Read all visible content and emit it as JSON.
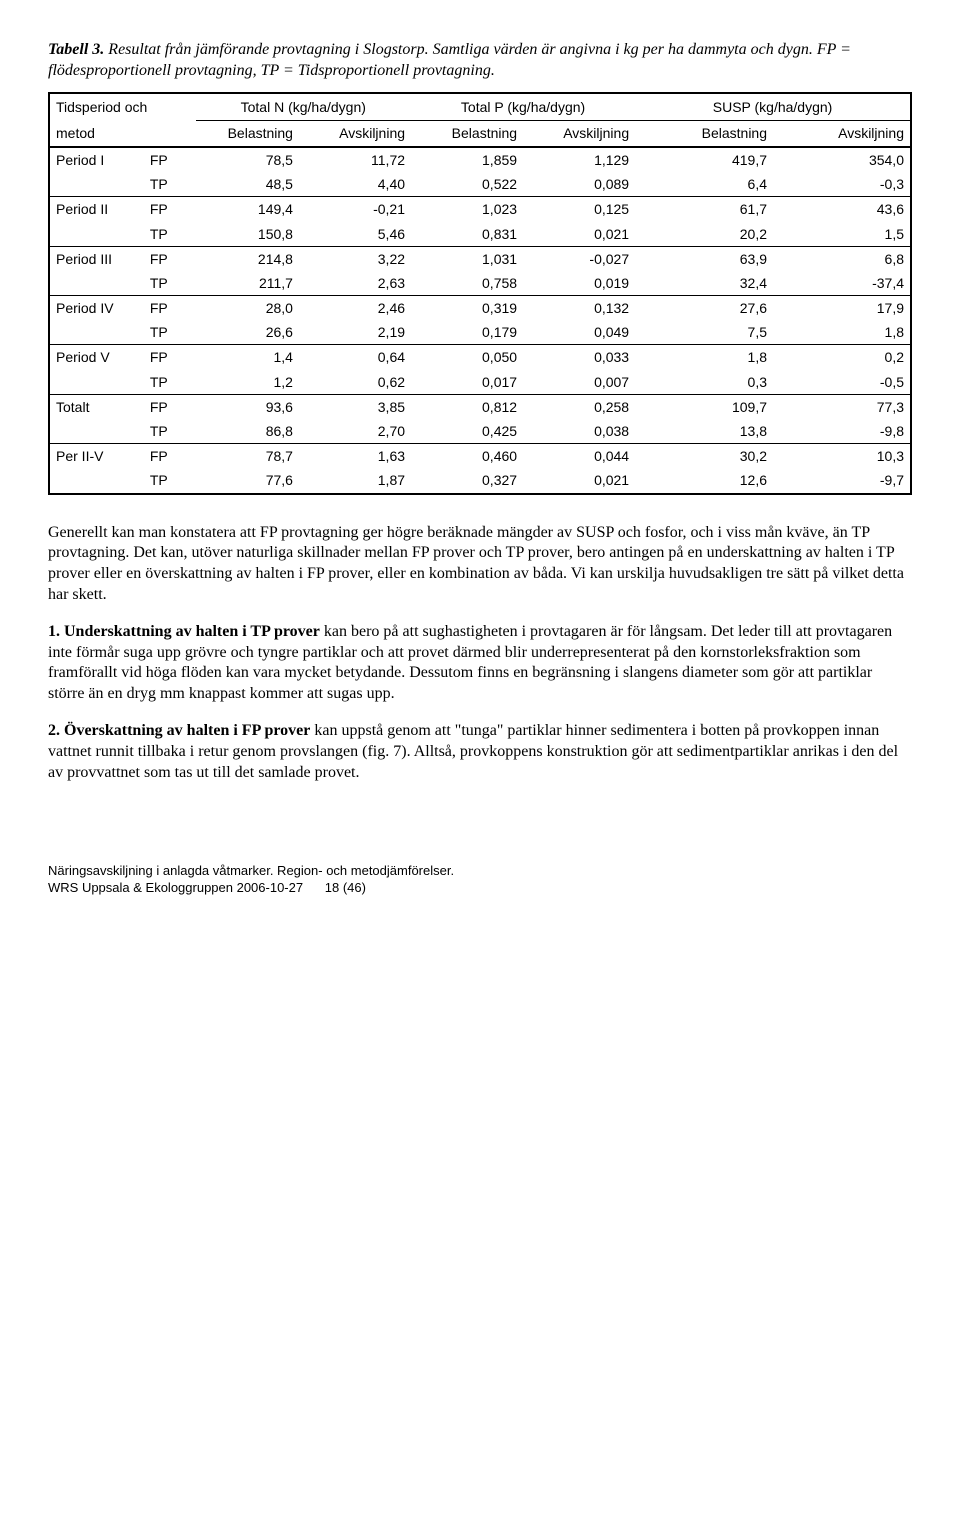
{
  "caption": {
    "label": "Tabell 3.",
    "text": " Resultat från jämförande provtagning i Slogstorp. Samtliga värden är angivna i kg per ha dammyta och dygn. FP = flödesproportionell provtagning, TP = Tidsproportionell provtagning."
  },
  "table": {
    "header1": {
      "c0": "Tidsperiod och",
      "c1": "Total N (kg/ha/dygn)",
      "c2": "Total P (kg/ha/dygn)",
      "c3": "SUSP (kg/ha/dygn)"
    },
    "header2": {
      "c0": "metod",
      "c1": "Belastning",
      "c2": "Avskiljning",
      "c3": "Belastning",
      "c4": "Avskiljning",
      "c5": "Belastning",
      "c6": "Avskiljning"
    },
    "rows": [
      {
        "period": "Period I",
        "method": "FP",
        "v": [
          "78,5",
          "11,72",
          "1,859",
          "1,129",
          "419,7",
          "354,0"
        ],
        "sep": false
      },
      {
        "period": "",
        "method": "TP",
        "v": [
          "48,5",
          "4,40",
          "0,522",
          "0,089",
          "6,4",
          "-0,3"
        ],
        "sep": true
      },
      {
        "period": "Period II",
        "method": "FP",
        "v": [
          "149,4",
          "-0,21",
          "1,023",
          "0,125",
          "61,7",
          "43,6"
        ],
        "sep": false
      },
      {
        "period": "",
        "method": "TP",
        "v": [
          "150,8",
          "5,46",
          "0,831",
          "0,021",
          "20,2",
          "1,5"
        ],
        "sep": true
      },
      {
        "period": "Period III",
        "method": "FP",
        "v": [
          "214,8",
          "3,22",
          "1,031",
          "-0,027",
          "63,9",
          "6,8"
        ],
        "sep": false
      },
      {
        "period": "",
        "method": "TP",
        "v": [
          "211,7",
          "2,63",
          "0,758",
          "0,019",
          "32,4",
          "-37,4"
        ],
        "sep": true
      },
      {
        "period": "Period IV",
        "method": "FP",
        "v": [
          "28,0",
          "2,46",
          "0,319",
          "0,132",
          "27,6",
          "17,9"
        ],
        "sep": false
      },
      {
        "period": "",
        "method": "TP",
        "v": [
          "26,6",
          "2,19",
          "0,179",
          "0,049",
          "7,5",
          "1,8"
        ],
        "sep": true
      },
      {
        "period": "Period V",
        "method": "FP",
        "v": [
          "1,4",
          "0,64",
          "0,050",
          "0,033",
          "1,8",
          "0,2"
        ],
        "sep": false
      },
      {
        "period": "",
        "method": "TP",
        "v": [
          "1,2",
          "0,62",
          "0,017",
          "0,007",
          "0,3",
          "-0,5"
        ],
        "sep": true
      },
      {
        "period": "Totalt",
        "method": "FP",
        "v": [
          "93,6",
          "3,85",
          "0,812",
          "0,258",
          "109,7",
          "77,3"
        ],
        "sep": false
      },
      {
        "period": "",
        "method": "TP",
        "v": [
          "86,8",
          "2,70",
          "0,425",
          "0,038",
          "13,8",
          "-9,8"
        ],
        "sep": true
      },
      {
        "period": "Per II-V",
        "method": "FP",
        "v": [
          "78,7",
          "1,63",
          "0,460",
          "0,044",
          "30,2",
          "10,3"
        ],
        "sep": false
      },
      {
        "period": "",
        "method": "TP",
        "v": [
          "77,6",
          "1,87",
          "0,327",
          "0,021",
          "12,6",
          "-9,7"
        ],
        "sep": false,
        "last": true
      }
    ],
    "col_widths": [
      "11%",
      "6%",
      "12%",
      "13%",
      "13%",
      "13%",
      "16%",
      "16%"
    ]
  },
  "paragraphs": {
    "p1": "Generellt kan man konstatera att FP provtagning ger högre beräknade mängder av SUSP och fosfor, och i viss mån kväve, än TP provtagning. Det kan, utöver naturliga skillnader mellan FP prover och TP prover, bero antingen på en underskattning av halten i TP prover eller en överskattning av halten i FP prover, eller en kombination av båda. Vi kan urskilja huvudsakligen tre sätt på vilket detta har skett.",
    "p2_lead": "1. Underskattning av halten i TP prover",
    "p2_rest": " kan bero på att sughastigheten i provtagaren är för långsam. Det leder till att provtagaren inte förmår suga upp grövre och tyngre partiklar och att provet därmed blir underrepresenterat på den kornstorleksfraktion som framförallt vid höga flöden kan vara mycket betydande. Dessutom finns en begränsning i slangens diameter som gör att partiklar större än en dryg mm knappast kommer att sugas upp.",
    "p3_lead": "2. Överskattning av halten i FP prover",
    "p3_rest": " kan uppstå genom att \"tunga\" partiklar hinner sedimentera i botten på provkoppen innan vattnet runnit tillbaka i retur genom provslangen (fig. 7). Alltså, provkoppens konstruktion gör att sedimentpartiklar anrikas i den del av provvattnet som tas ut till det samlade provet."
  },
  "footer": {
    "line1": "Näringsavskiljning i anlagda våtmarker. Region- och metodjämförelser.",
    "line2_left": "WRS Uppsala & Ekologgruppen 2006-10-27",
    "line2_right": "18 (46)"
  }
}
